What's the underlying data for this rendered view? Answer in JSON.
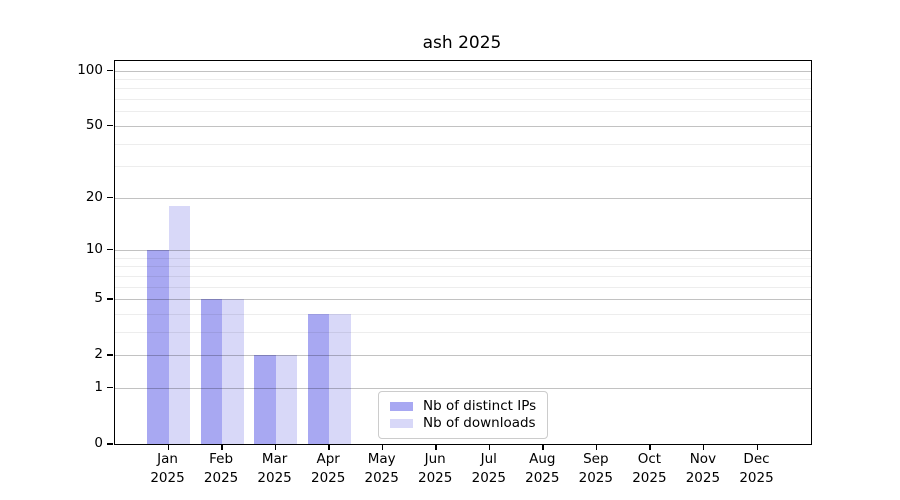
{
  "title": "ash 2025",
  "colors": {
    "ips_bar": "#a8a8f2",
    "downloads_bar": "#d8d8f8",
    "grid_major": "rgba(0,0,0,0.24)",
    "grid_minor": "rgba(0,0,0,0.07)",
    "spine": "#000000",
    "legend_border": "#cccccc"
  },
  "legend": {
    "items": [
      {
        "label": "Nb of distinct IPs",
        "color_key": "ips_bar"
      },
      {
        "label": "Nb of downloads",
        "color_key": "downloads_bar"
      }
    ]
  },
  "chart_data": {
    "type": "bar",
    "title": "ash 2025",
    "categories": [
      "Jan 2025",
      "Feb 2025",
      "Mar 2025",
      "Apr 2025",
      "May 2025",
      "Jun 2025",
      "Jul 2025",
      "Aug 2025",
      "Sep 2025",
      "Oct 2025",
      "Nov 2025",
      "Dec 2025"
    ],
    "series": [
      {
        "name": "Nb of distinct IPs",
        "values": [
          10,
          5,
          2,
          4,
          0,
          0,
          0,
          0,
          0,
          0,
          0,
          0
        ]
      },
      {
        "name": "Nb of downloads",
        "values": [
          18,
          5,
          2,
          4,
          0,
          0,
          0,
          0,
          0,
          0,
          0,
          0
        ]
      }
    ],
    "xlabel": "",
    "ylabel": "",
    "yscale": "log1p",
    "ylim": [
      0,
      113
    ],
    "y_major_ticks": [
      0,
      1,
      2,
      5,
      10,
      20,
      50,
      100
    ],
    "y_minor_gridlines": [
      3,
      4,
      6,
      7,
      8,
      9,
      30,
      40,
      60,
      70,
      80,
      90
    ],
    "grid": true,
    "legend_position": "lower center"
  }
}
